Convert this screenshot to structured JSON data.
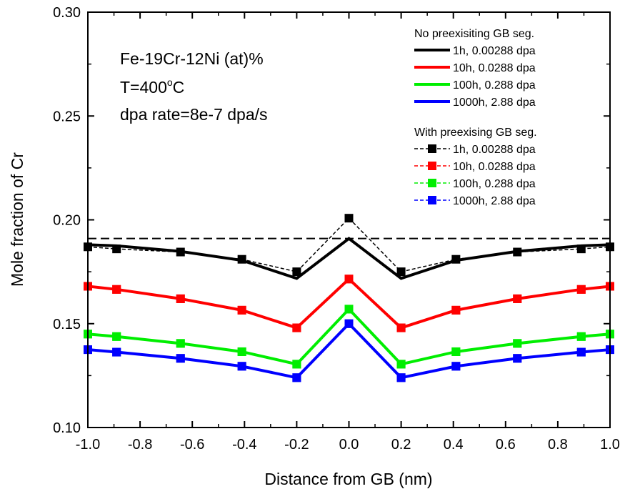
{
  "chart_data": {
    "type": "line",
    "xlabel": "Distance from GB (nm)",
    "ylabel": "Mole fraction of Cr",
    "xlim": [
      -1.0,
      1.0
    ],
    "ylim": [
      0.1,
      0.3
    ],
    "x_ticks": [
      "-1.0",
      "-0.8",
      "-0.6",
      "-0.4",
      "-0.2",
      "0.0",
      "0.2",
      "0.4",
      "0.6",
      "0.8",
      "1.0"
    ],
    "y_ticks": [
      "0.10",
      "0.15",
      "0.20",
      "0.25",
      "0.30"
    ],
    "annotations": {
      "composition": "Fe-19Cr-12Ni (at)%",
      "temperature_prefix": "T=400",
      "temperature_sup": "o",
      "temperature_suffix": "C",
      "rate": "dpa rate=8e-7 dpa/s"
    },
    "reference_line": {
      "y": 0.191,
      "style": "dashed",
      "color": "#000000"
    },
    "legend": {
      "position": "top-right",
      "group1_title": "No preexisiting GB seg.",
      "group2_title": "With preexising GB seg."
    },
    "x": [
      -1.0,
      -0.89,
      -0.645,
      -0.41,
      -0.2,
      0.0,
      0.2,
      0.41,
      0.645,
      0.89,
      1.0
    ],
    "series": [
      {
        "name": "1h, 0.00288 dpa",
        "group": 1,
        "color": "#000000",
        "style": "solid",
        "markers": false,
        "values": [
          0.188,
          0.1875,
          0.1848,
          0.1805,
          0.1718,
          0.191,
          0.1718,
          0.1805,
          0.1848,
          0.1875,
          0.188
        ]
      },
      {
        "name": "10h, 0.0288 dpa",
        "group": 1,
        "color": "#ff0000",
        "style": "solid",
        "markers": true,
        "values": [
          0.168,
          0.1665,
          0.162,
          0.1565,
          0.148,
          0.1715,
          0.148,
          0.1565,
          0.162,
          0.1665,
          0.168
        ]
      },
      {
        "name": "100h, 0.288 dpa",
        "group": 1,
        "color": "#00ee00",
        "style": "solid",
        "markers": true,
        "values": [
          0.145,
          0.1438,
          0.1405,
          0.1365,
          0.1305,
          0.157,
          0.1305,
          0.1365,
          0.1405,
          0.1438,
          0.145
        ]
      },
      {
        "name": "1000h, 2.88 dpa",
        "group": 1,
        "color": "#0000ff",
        "style": "solid",
        "markers": true,
        "values": [
          0.1375,
          0.1363,
          0.1333,
          0.1295,
          0.124,
          0.15,
          0.124,
          0.1295,
          0.1333,
          0.1363,
          0.1375
        ]
      },
      {
        "name": "1h, 0.00288 dpa",
        "group": 2,
        "color": "#000000",
        "style": "dashed",
        "markers": true,
        "values": [
          0.187,
          0.186,
          0.1845,
          0.181,
          0.175,
          0.2008,
          0.175,
          0.181,
          0.1845,
          0.186,
          0.187
        ]
      },
      {
        "name": "10h, 0.0288 dpa",
        "group": 2,
        "color": "#ff0000",
        "style": "dashed",
        "markers": true,
        "values": [
          0.168,
          0.1665,
          0.162,
          0.1565,
          0.148,
          0.1715,
          0.148,
          0.1565,
          0.162,
          0.1665,
          0.168
        ]
      },
      {
        "name": "100h, 0.288 dpa",
        "group": 2,
        "color": "#00ee00",
        "style": "dashed",
        "markers": true,
        "values": [
          0.145,
          0.1438,
          0.1405,
          0.1365,
          0.1305,
          0.157,
          0.1305,
          0.1365,
          0.1405,
          0.1438,
          0.145
        ]
      },
      {
        "name": "1000h, 2.88 dpa",
        "group": 2,
        "color": "#0000ff",
        "style": "dashed",
        "markers": true,
        "values": [
          0.1375,
          0.1363,
          0.1333,
          0.1295,
          0.124,
          0.15,
          0.124,
          0.1295,
          0.1333,
          0.1363,
          0.1375
        ]
      }
    ]
  }
}
